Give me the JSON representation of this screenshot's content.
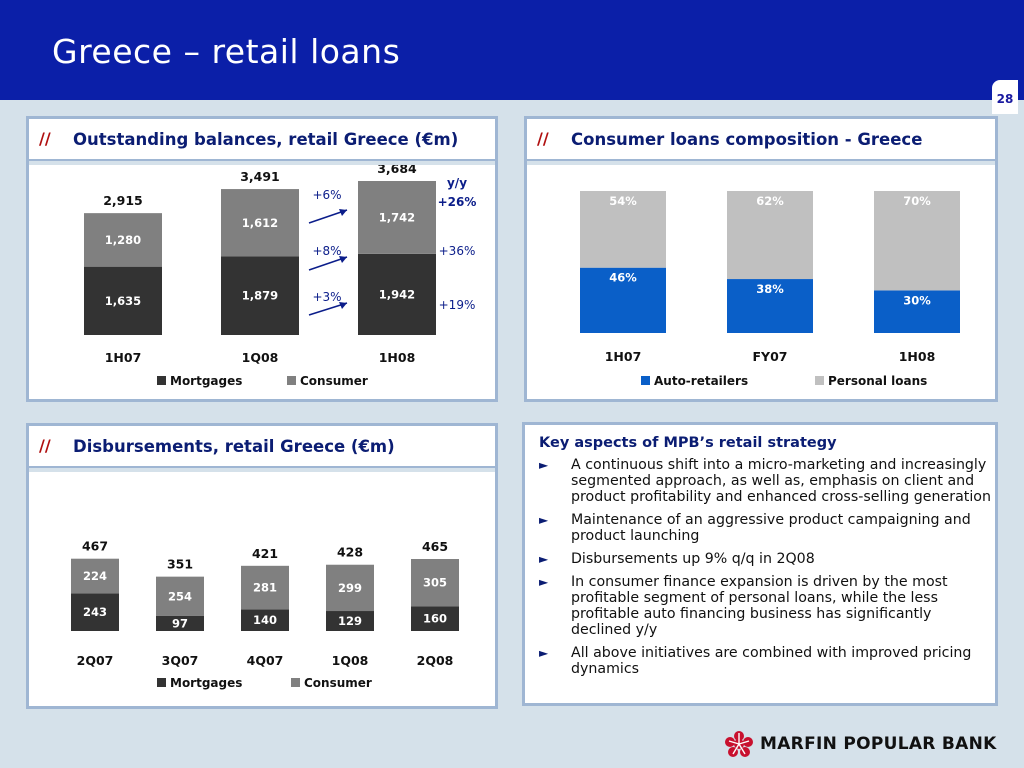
{
  "header": {
    "title": "Greece – retail loans",
    "page_number": "28"
  },
  "outstanding": {
    "slashes": "//",
    "title": "Outstanding balances, retail Greece (€m)",
    "growth": {
      "header": "y/y",
      "total": "+26%",
      "consumer": "+36%",
      "mortgages": "+19%",
      "qq_total": "+6%",
      "qq_consumer": "+8%",
      "qq_mortgages": "+3%"
    }
  },
  "composition": {
    "slashes": "//",
    "title": "Consumer loans composition - Greece"
  },
  "disbursements": {
    "slashes": "//",
    "title": "Disbursements, retail Greece (€m)"
  },
  "strategy": {
    "title": "Key aspects of MPB’s retail strategy",
    "bullet_glyph": "►",
    "bullets": [
      "A continuous shift into a micro-marketing and increasingly segmented approach, as well as, emphasis on client and product profitability and enhanced cross-selling generation",
      "Maintenance of an aggressive product campaigning and product launching",
      "Disbursements up 9% q/q in 2Q08",
      "In consumer finance expansion is driven by the most profitable segment of personal loans, while the less profitable auto financing business has significantly declined y/y",
      "All above initiatives are combined with improved pricing dynamics"
    ]
  },
  "logo": {
    "text": "MARFIN POPULAR BANK"
  },
  "chart_data": [
    {
      "type": "bar",
      "stacked": true,
      "title": "Outstanding balances, retail Greece (€m)",
      "categories": [
        "1H07",
        "1Q08",
        "1H08"
      ],
      "series": [
        {
          "name": "Mortgages",
          "values": [
            1635,
            1879,
            1942
          ],
          "labels": [
            "1,635",
            "1,879",
            "1,942"
          ],
          "color": "#333333"
        },
        {
          "name": "Consumer",
          "values": [
            1280,
            1612,
            1742
          ],
          "labels": [
            "1,280",
            "1,612",
            "1,742"
          ],
          "color": "#808080"
        }
      ],
      "totals": [
        "2,915",
        "3,491",
        "3,684"
      ],
      "ylim": [
        0,
        4400
      ],
      "legend": "bottom"
    },
    {
      "type": "bar",
      "stacked": true,
      "percent": true,
      "title": "Consumer loans composition - Greece",
      "categories": [
        "1H07",
        "FY07",
        "1H08"
      ],
      "series": [
        {
          "name": "Auto-retailers",
          "values": [
            46,
            38,
            30
          ],
          "labels": [
            "46%",
            "38%",
            "30%"
          ],
          "color": "#0a5fc8"
        },
        {
          "name": "Personal loans",
          "values": [
            54,
            62,
            70
          ],
          "labels": [
            "54%",
            "62%",
            "70%"
          ],
          "color": "#c0c0c0"
        }
      ],
      "ylim": [
        0,
        100
      ],
      "legend": "bottom"
    },
    {
      "type": "bar",
      "stacked": true,
      "title": "Disbursements, retail Greece (€m)",
      "categories": [
        "2Q07",
        "3Q07",
        "4Q07",
        "1Q08",
        "2Q08"
      ],
      "series": [
        {
          "name": "Mortgages",
          "values": [
            243,
            97,
            140,
            129,
            160
          ],
          "labels": [
            "243",
            "97",
            "140",
            "129",
            "160"
          ],
          "color": "#333333"
        },
        {
          "name": "Consumer",
          "values": [
            224,
            254,
            281,
            299,
            305
          ],
          "labels": [
            "224",
            "254",
            "281",
            "299",
            "305"
          ],
          "color": "#808080"
        }
      ],
      "totals": [
        "467",
        "351",
        "421",
        "428",
        "465"
      ],
      "ylim": [
        0,
        700
      ],
      "legend": "bottom"
    }
  ]
}
